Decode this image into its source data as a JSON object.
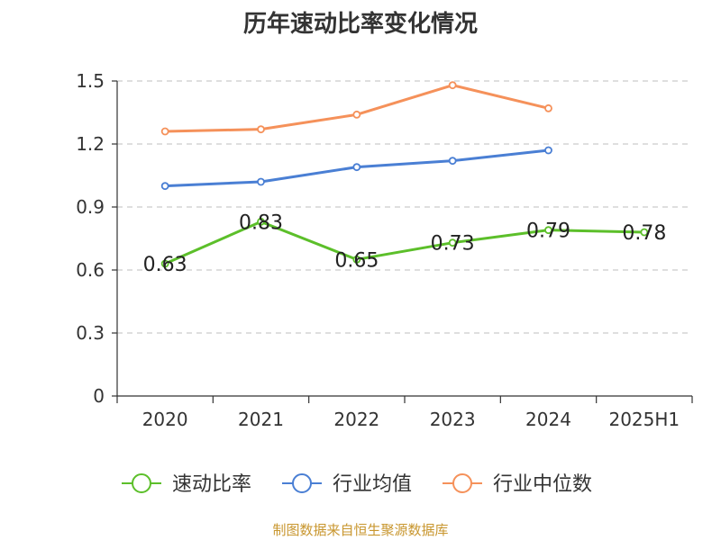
{
  "chart_data": {
    "type": "line",
    "title": "历年速动比率变化情况",
    "categories": [
      "2020",
      "2021",
      "2022",
      "2023",
      "2024",
      "2025H1"
    ],
    "ylim": [
      0,
      1.5
    ],
    "yticks": [
      "0",
      "0.3",
      "0.6",
      "0.9",
      "1.2",
      "1.5"
    ],
    "grid": true,
    "legend_position": "bottom",
    "series": [
      {
        "name": "速动比率",
        "color": "#5cbf2a",
        "values": [
          0.63,
          0.83,
          0.65,
          0.73,
          0.79,
          0.78
        ],
        "labels": [
          "0.63",
          "0.83",
          "0.65",
          "0.73",
          "0.79",
          "0.78"
        ],
        "show_labels": true
      },
      {
        "name": "行业均值",
        "color": "#4a7fd4",
        "values": [
          1.0,
          1.02,
          1.09,
          1.12,
          1.17,
          null
        ],
        "show_labels": false
      },
      {
        "name": "行业中位数",
        "color": "#f5915a",
        "values": [
          1.26,
          1.27,
          1.34,
          1.48,
          1.37,
          null
        ],
        "show_labels": false
      }
    ]
  },
  "source": "制图数据来自恒生聚源数据库"
}
